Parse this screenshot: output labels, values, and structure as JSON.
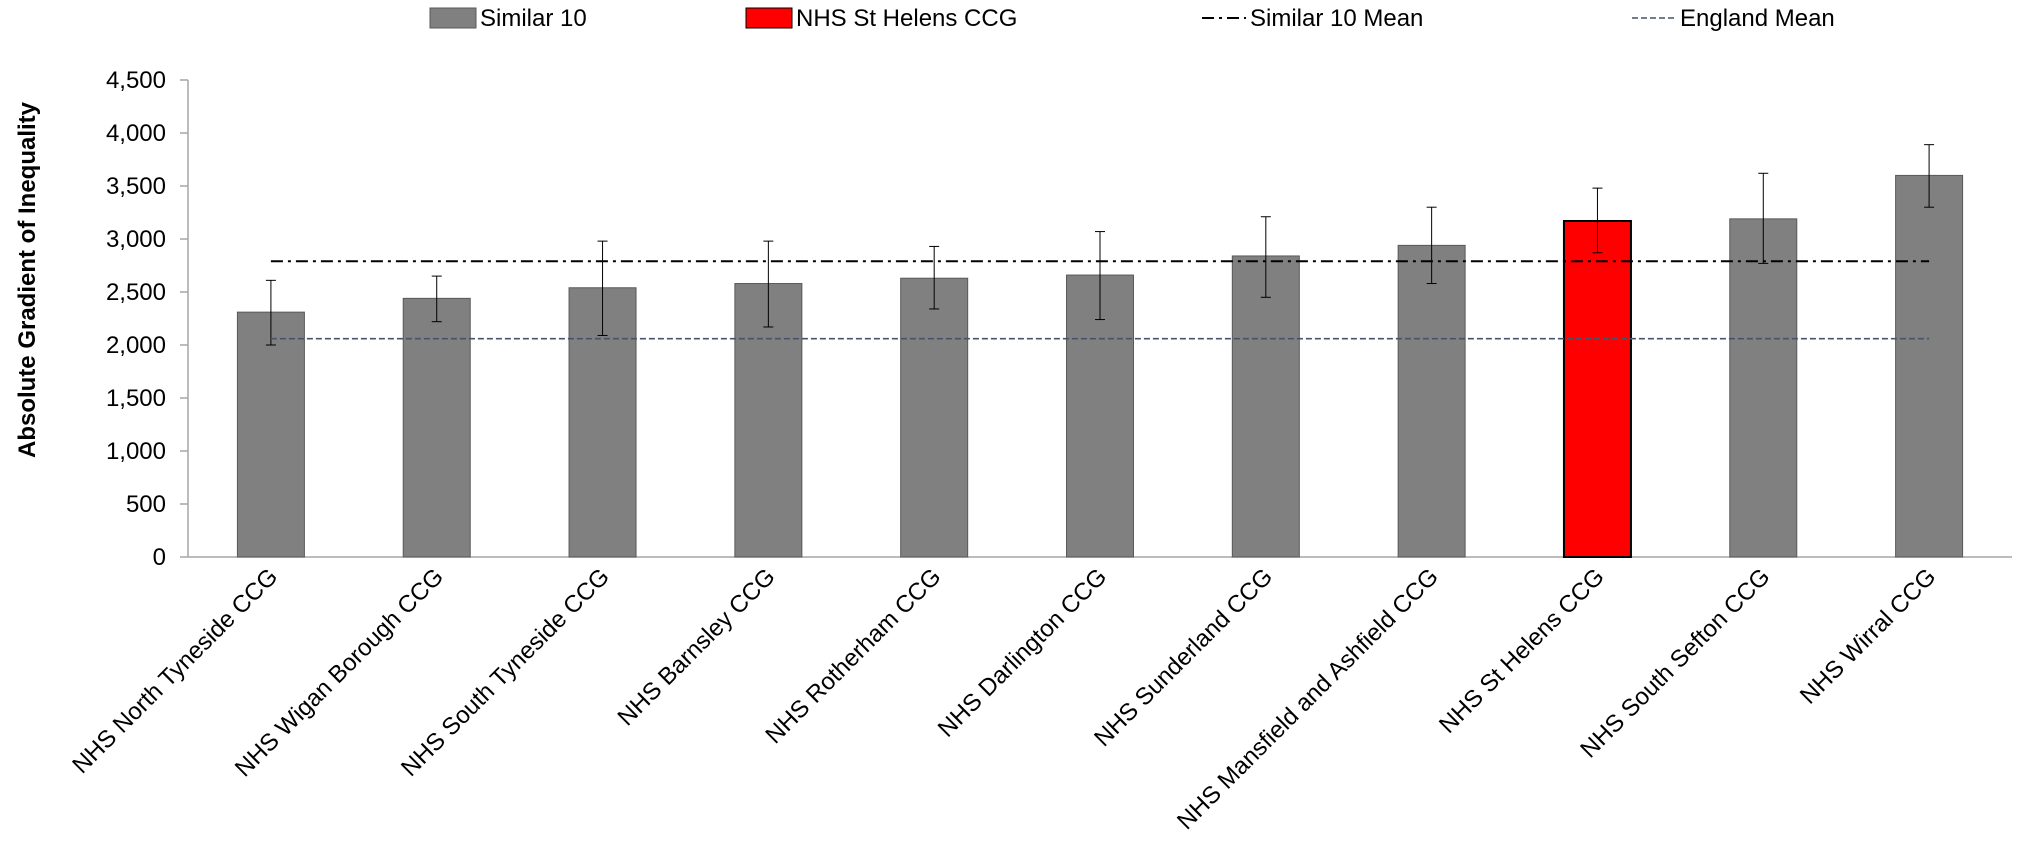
{
  "chart_data": {
    "type": "bar",
    "title": "",
    "xlabel": "",
    "ylabel": "Absolute Gradient of Inequality",
    "ylim": [
      0,
      4500
    ],
    "yticks": [
      0,
      500,
      1000,
      1500,
      2000,
      2500,
      3000,
      3500,
      4000,
      4500
    ],
    "ytick_labels": [
      "0",
      "500",
      "1,000",
      "1,500",
      "2,000",
      "2,500",
      "3,000",
      "3,500",
      "4,000",
      "4,500"
    ],
    "grid": false,
    "legend_position": "top",
    "categories": [
      "NHS North Tyneside CCG",
      "NHS Wigan Borough CCG",
      "NHS South Tyneside CCG",
      "NHS Barnsley CCG",
      "NHS Rotherham CCG",
      "NHS Darlington CCG",
      "NHS Sunderland CCG",
      "NHS Mansfield and Ashfield CCG",
      "NHS St Helens CCG",
      "NHS South Sefton CCG",
      "NHS Wirral CCG"
    ],
    "values": [
      2310,
      2440,
      2540,
      2580,
      2630,
      2660,
      2840,
      2940,
      3170,
      3190,
      3600
    ],
    "error_low": [
      2000,
      2220,
      2090,
      2170,
      2340,
      2240,
      2450,
      2580,
      2870,
      2770,
      3300
    ],
    "error_high": [
      2610,
      2650,
      2980,
      2980,
      2930,
      3070,
      3210,
      3300,
      3480,
      3620,
      3890
    ],
    "highlight_index": 8,
    "reference_lines": [
      {
        "name": "Similar 10 Mean",
        "value": 2790,
        "style": "dash-dot",
        "color": "#000000"
      },
      {
        "name": "England Mean",
        "value": 2060,
        "style": "dashed",
        "color": "#44546a"
      }
    ],
    "legend": [
      {
        "label": "Similar 10",
        "kind": "bar",
        "color": "#808080"
      },
      {
        "label": "NHS St Helens CCG",
        "kind": "bar",
        "color": "#ff0000"
      },
      {
        "label": "Similar 10 Mean",
        "kind": "dash-dot",
        "color": "#000000"
      },
      {
        "label": "England Mean",
        "kind": "dashed",
        "color": "#44546a"
      }
    ],
    "colors": {
      "bar": "#808080",
      "bar_stroke": "#595959",
      "highlight": "#ff0000",
      "highlight_stroke": "#000000",
      "axis": "#a6a6a6",
      "error_bar": "#000000"
    }
  }
}
